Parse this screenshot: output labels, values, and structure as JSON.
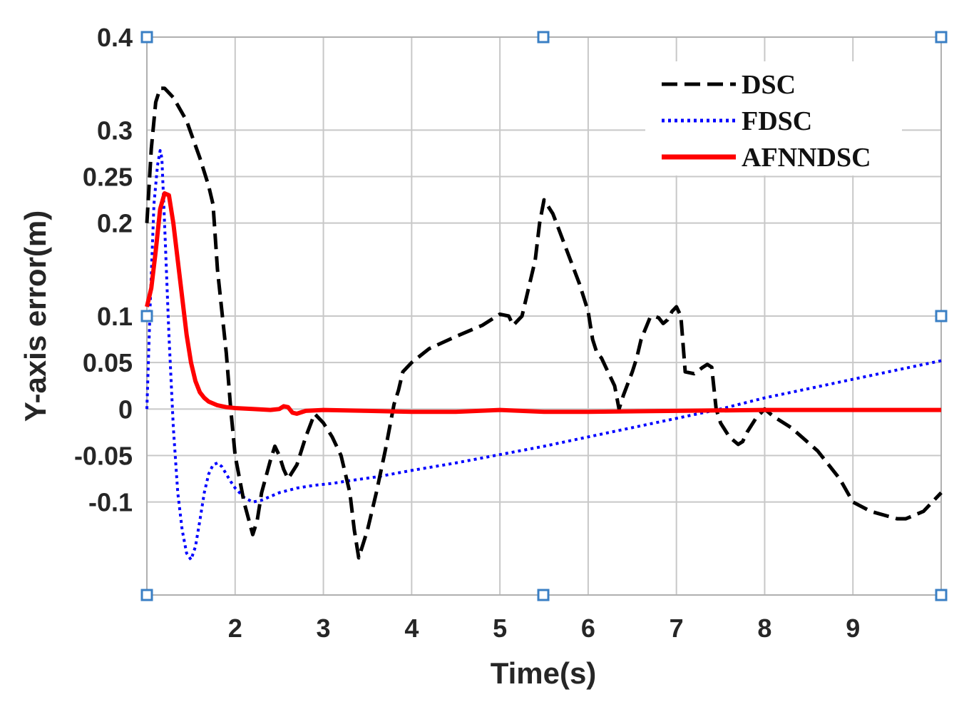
{
  "chart_data": {
    "type": "line",
    "title": "",
    "xlabel": "Time(s)",
    "ylabel": "Y-axis error(m)",
    "xlim": [
      1,
      10
    ],
    "ylim": [
      -0.2,
      0.4
    ],
    "xticks": [
      2,
      3,
      4,
      5,
      6,
      7,
      8,
      9
    ],
    "xtick_labels": [
      "2",
      "3",
      "4",
      "5",
      "6",
      "7",
      "8",
      "9"
    ],
    "grid_x": [
      1,
      2,
      3,
      4,
      5,
      6,
      7,
      8,
      9,
      10
    ],
    "yticks": [
      0.4,
      0.3,
      0.25,
      0.2,
      0.1,
      0.05,
      0,
      -0.05,
      -0.1
    ],
    "ytick_labels": [
      "0.4",
      "0.3",
      "0.25",
      "0.2",
      "0.1",
      "0.05",
      "0",
      "-0.05",
      "-0.1"
    ],
    "grid_y": [
      0.4,
      0.3,
      0.25,
      0.2,
      0.1,
      0.05,
      0,
      -0.05,
      -0.1,
      -0.2
    ],
    "grid": true,
    "legend_position": "top-right",
    "selection_handles": true,
    "series": [
      {
        "name": "DSC",
        "color": "#000000",
        "style": "dashed",
        "x": [
          1.0,
          1.05,
          1.1,
          1.15,
          1.2,
          1.3,
          1.45,
          1.6,
          1.7,
          1.75,
          1.8,
          1.9,
          1.95,
          2.0,
          2.1,
          2.2,
          2.25,
          2.3,
          2.4,
          2.45,
          2.5,
          2.55,
          2.6,
          2.7,
          2.8,
          2.9,
          3.0,
          3.1,
          3.2,
          3.3,
          3.35,
          3.4,
          3.5,
          3.6,
          3.7,
          3.75,
          3.8,
          3.85,
          3.9,
          4.0,
          4.2,
          4.5,
          4.8,
          5.0,
          5.1,
          5.15,
          5.25,
          5.4,
          5.45,
          5.5,
          5.6,
          5.7,
          5.9,
          6.0,
          6.05,
          6.1,
          6.15,
          6.2,
          6.25,
          6.3,
          6.35,
          6.4,
          6.5,
          6.55,
          6.6,
          6.7,
          6.75,
          6.8,
          6.85,
          6.9,
          6.95,
          7.0,
          7.05,
          7.1,
          7.2,
          7.3,
          7.35,
          7.4,
          7.45,
          7.5,
          7.6,
          7.7,
          7.75,
          7.8,
          7.9,
          8.0,
          8.1,
          8.3,
          8.6,
          8.85,
          9.0,
          9.2,
          9.5,
          9.6,
          9.8,
          10.0
        ],
        "y": [
          0.2,
          0.28,
          0.33,
          0.345,
          0.345,
          0.335,
          0.31,
          0.27,
          0.24,
          0.22,
          0.15,
          0.06,
          0.0,
          -0.05,
          -0.1,
          -0.135,
          -0.12,
          -0.09,
          -0.055,
          -0.04,
          -0.05,
          -0.065,
          -0.075,
          -0.06,
          -0.03,
          -0.005,
          -0.015,
          -0.03,
          -0.05,
          -0.09,
          -0.13,
          -0.16,
          -0.13,
          -0.09,
          -0.045,
          -0.02,
          0.005,
          0.02,
          0.04,
          0.05,
          0.065,
          0.078,
          0.09,
          0.102,
          0.1,
          0.09,
          0.1,
          0.16,
          0.2,
          0.225,
          0.21,
          0.185,
          0.135,
          0.105,
          0.075,
          0.06,
          0.055,
          0.045,
          0.035,
          0.025,
          0.0,
          0.015,
          0.04,
          0.055,
          0.075,
          0.098,
          0.1,
          0.098,
          0.092,
          0.096,
          0.105,
          0.11,
          0.1,
          0.04,
          0.038,
          0.045,
          0.048,
          0.045,
          0.0,
          -0.015,
          -0.03,
          -0.038,
          -0.035,
          -0.025,
          -0.01,
          0.0,
          -0.008,
          -0.02,
          -0.045,
          -0.075,
          -0.1,
          -0.11,
          -0.118,
          -0.118,
          -0.11,
          -0.09
        ]
      },
      {
        "name": "FDSC",
        "color": "#0000ff",
        "style": "dotted",
        "x": [
          1.0,
          1.04,
          1.08,
          1.12,
          1.15,
          1.17,
          1.2,
          1.25,
          1.3,
          1.35,
          1.4,
          1.45,
          1.5,
          1.55,
          1.6,
          1.65,
          1.7,
          1.75,
          1.8,
          1.85,
          1.9,
          1.95,
          2.0,
          2.05,
          2.1,
          2.2,
          2.3,
          2.5,
          2.7,
          2.9,
          3.1,
          3.3,
          3.6,
          4.0,
          4.5,
          5.0,
          5.5,
          6.0,
          6.5,
          7.0,
          7.5,
          8.0,
          8.5,
          9.0,
          9.5,
          10.0
        ],
        "y": [
          0.0,
          0.12,
          0.22,
          0.262,
          0.278,
          0.27,
          0.2,
          0.08,
          -0.02,
          -0.09,
          -0.13,
          -0.155,
          -0.162,
          -0.148,
          -0.12,
          -0.09,
          -0.07,
          -0.06,
          -0.058,
          -0.062,
          -0.07,
          -0.078,
          -0.085,
          -0.09,
          -0.095,
          -0.1,
          -0.098,
          -0.09,
          -0.085,
          -0.082,
          -0.08,
          -0.077,
          -0.073,
          -0.066,
          -0.058,
          -0.049,
          -0.04,
          -0.03,
          -0.02,
          -0.01,
          0.0,
          0.012,
          0.022,
          0.032,
          0.042,
          0.052
        ]
      },
      {
        "name": "AFNNDSC",
        "color": "#ff0000",
        "style": "solid",
        "x": [
          1.0,
          1.05,
          1.1,
          1.15,
          1.2,
          1.25,
          1.3,
          1.35,
          1.4,
          1.45,
          1.5,
          1.55,
          1.6,
          1.65,
          1.7,
          1.8,
          1.9,
          2.0,
          2.2,
          2.4,
          2.5,
          2.55,
          2.6,
          2.65,
          2.7,
          2.8,
          3.0,
          3.5,
          4.0,
          4.5,
          5.0,
          5.5,
          6.0,
          7.0,
          8.0,
          9.0,
          10.0
        ],
        "y": [
          0.11,
          0.13,
          0.17,
          0.215,
          0.232,
          0.23,
          0.2,
          0.16,
          0.12,
          0.08,
          0.05,
          0.03,
          0.018,
          0.012,
          0.008,
          0.004,
          0.002,
          0.001,
          0.0,
          -0.001,
          0.0,
          0.003,
          0.002,
          -0.004,
          -0.005,
          -0.002,
          -0.001,
          -0.002,
          -0.003,
          -0.003,
          -0.001,
          -0.003,
          -0.003,
          -0.002,
          -0.001,
          -0.001,
          -0.001
        ]
      }
    ]
  }
}
